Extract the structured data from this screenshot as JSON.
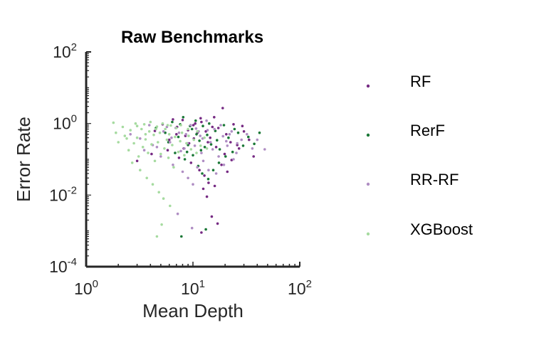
{
  "chart_data": {
    "type": "scatter",
    "title": "Raw Benchmarks",
    "xlabel": "Mean Depth",
    "ylabel": "Error Rate",
    "x_scale": "log",
    "y_scale": "log",
    "xlim": [
      1,
      100
    ],
    "ylim": [
      0.0001,
      100
    ],
    "x_ticks": [
      {
        "base": "10",
        "exp": "0",
        "value": 1
      },
      {
        "base": "10",
        "exp": "1",
        "value": 10
      },
      {
        "base": "10",
        "exp": "2",
        "value": 100
      }
    ],
    "y_ticks": [
      {
        "base": "10",
        "exp": "-4",
        "value": 0.0001
      },
      {
        "base": "10",
        "exp": "-2",
        "value": 0.01
      },
      {
        "base": "10",
        "exp": "0",
        "value": 1
      },
      {
        "base": "10",
        "exp": "2",
        "value": 100
      }
    ],
    "grid": false,
    "legend_position": "right",
    "series": [
      {
        "name": "RF",
        "color": "#762a83",
        "points": [
          [
            4.4,
            0.62
          ],
          [
            5.2,
            0.95
          ],
          [
            6.0,
            0.35
          ],
          [
            7.1,
            0.8
          ],
          [
            8.0,
            1.25
          ],
          [
            8.5,
            0.45
          ],
          [
            9.2,
            0.28
          ],
          [
            10.1,
            0.9
          ],
          [
            11.0,
            0.55
          ],
          [
            12.0,
            1.1
          ],
          [
            13.2,
            0.6
          ],
          [
            14.5,
            0.4
          ],
          [
            15.8,
            1.5
          ],
          [
            17.3,
            0.75
          ],
          [
            19.0,
            2.7
          ],
          [
            20.5,
            0.5
          ],
          [
            22.5,
            0.3
          ],
          [
            24.0,
            0.95
          ],
          [
            27.0,
            0.2
          ],
          [
            30.0,
            0.6
          ],
          [
            33.5,
            0.35
          ],
          [
            37.0,
            0.12
          ],
          [
            3.0,
            0.09
          ],
          [
            4.1,
            0.14
          ],
          [
            5.8,
            0.18
          ],
          [
            7.4,
            0.11
          ],
          [
            9.6,
            0.08
          ],
          [
            11.5,
            0.05
          ],
          [
            12.8,
            0.035
          ],
          [
            14.0,
            0.022
          ],
          [
            16.0,
            0.018
          ],
          [
            18.5,
            0.07
          ],
          [
            21.0,
            0.045
          ],
          [
            12.5,
            0.015
          ],
          [
            13.5,
            0.009
          ],
          [
            15.0,
            0.0025
          ],
          [
            17.0,
            0.0016
          ],
          [
            12.0,
            0.0009
          ],
          [
            26.0,
            0.25
          ],
          [
            29.0,
            0.85
          ],
          [
            6.5,
            1.3
          ],
          [
            10.5,
            1.0
          ],
          [
            9.0,
            0.65
          ],
          [
            13.8,
            0.3
          ],
          [
            16.5,
            0.22
          ],
          [
            8.2,
            0.2
          ],
          [
            7.0,
            0.5
          ],
          [
            11.8,
            1.4
          ],
          [
            15.2,
            0.8
          ],
          [
            19.8,
            0.14
          ],
          [
            23.0,
            0.095
          ],
          [
            10.2,
            0.38
          ]
        ]
      },
      {
        "name": "RerF",
        "color": "#1b7837",
        "points": [
          [
            4.5,
            0.75
          ],
          [
            5.5,
            0.55
          ],
          [
            6.4,
            1.1
          ],
          [
            7.3,
            0.42
          ],
          [
            8.1,
            1.5
          ],
          [
            9.0,
            0.25
          ],
          [
            9.8,
            0.7
          ],
          [
            10.6,
            1.2
          ],
          [
            11.5,
            0.33
          ],
          [
            12.4,
            0.85
          ],
          [
            13.6,
            0.48
          ],
          [
            14.8,
            0.26
          ],
          [
            16.2,
            0.62
          ],
          [
            17.8,
            0.19
          ],
          [
            19.5,
            0.9
          ],
          [
            21.5,
            0.4
          ],
          [
            23.5,
            0.16
          ],
          [
            26.5,
            0.55
          ],
          [
            29.5,
            0.24
          ],
          [
            33.0,
            0.42
          ],
          [
            37.5,
            0.27
          ],
          [
            42.0,
            0.55
          ],
          [
            6.8,
            0.15
          ],
          [
            8.4,
            0.1
          ],
          [
            10.0,
            0.13
          ],
          [
            11.2,
            0.065
          ],
          [
            12.2,
            0.04
          ],
          [
            13.9,
            0.028
          ],
          [
            15.5,
            0.05
          ],
          [
            17.5,
            0.08
          ],
          [
            7.8,
            0.0007
          ],
          [
            13.2,
            0.0011
          ],
          [
            8.8,
            0.16
          ],
          [
            10.8,
            0.5
          ],
          [
            12.9,
            0.22
          ],
          [
            14.2,
            1.0
          ],
          [
            9.4,
            0.85
          ],
          [
            16.8,
            0.34
          ],
          [
            20.2,
            0.12
          ],
          [
            24.5,
            0.7
          ],
          [
            5.9,
            0.3
          ],
          [
            7.6,
            0.95
          ],
          [
            11.9,
            0.18
          ]
        ]
      },
      {
        "name": "RR-RF",
        "color": "#af8dc3",
        "points": [
          [
            2.6,
            0.5
          ],
          [
            3.2,
            0.38
          ],
          [
            3.9,
            0.9
          ],
          [
            4.6,
            0.22
          ],
          [
            5.3,
            0.6
          ],
          [
            6.1,
            0.3
          ],
          [
            6.9,
            0.75
          ],
          [
            7.7,
            0.17
          ],
          [
            8.6,
            0.5
          ],
          [
            9.5,
            0.9
          ],
          [
            10.4,
            0.24
          ],
          [
            11.3,
            0.6
          ],
          [
            12.3,
            0.38
          ],
          [
            13.4,
            1.2
          ],
          [
            14.6,
            0.3
          ],
          [
            15.9,
            0.7
          ],
          [
            17.4,
            0.12
          ],
          [
            19.1,
            0.44
          ],
          [
            21.0,
            0.24
          ],
          [
            23.0,
            0.6
          ],
          [
            25.5,
            0.15
          ],
          [
            28.5,
            0.35
          ],
          [
            32.0,
            0.5
          ],
          [
            36.0,
            0.2
          ],
          [
            40.0,
            0.35
          ],
          [
            47.0,
            0.19
          ],
          [
            5.0,
            0.12
          ],
          [
            6.5,
            0.07
          ],
          [
            8.0,
            0.045
          ],
          [
            9.0,
            0.03
          ],
          [
            10.0,
            0.02
          ],
          [
            11.0,
            0.06
          ],
          [
            12.5,
            0.09
          ],
          [
            14.0,
            0.05
          ],
          [
            16.5,
            0.04
          ],
          [
            19.5,
            0.07
          ],
          [
            7.2,
            0.003
          ],
          [
            9.8,
            0.0012
          ],
          [
            4.2,
            0.25
          ],
          [
            5.7,
            0.8
          ],
          [
            7.4,
            0.55
          ],
          [
            8.9,
            0.28
          ],
          [
            10.7,
            0.72
          ],
          [
            12.0,
            0.15
          ],
          [
            13.7,
            0.65
          ],
          [
            18.2,
            0.9
          ],
          [
            22.0,
            0.5
          ],
          [
            26.0,
            0.28
          ],
          [
            3.5,
            0.18
          ],
          [
            6.3,
            0.4
          ],
          [
            8.3,
            0.2
          ],
          [
            15.3,
            0.19
          ],
          [
            11.7,
            0.45
          ],
          [
            20.5,
            0.32
          ],
          [
            24.0,
            0.1
          ]
        ]
      },
      {
        "name": "XGBoost",
        "color": "#a6dba0",
        "points": [
          [
            1.8,
            1.05
          ],
          [
            1.9,
            0.55
          ],
          [
            2.0,
            0.3
          ],
          [
            2.2,
            0.8
          ],
          [
            2.3,
            0.45
          ],
          [
            2.5,
            0.18
          ],
          [
            2.6,
            0.65
          ],
          [
            2.8,
            0.28
          ],
          [
            2.9,
            1.0
          ],
          [
            3.0,
            0.4
          ],
          [
            3.1,
            0.12
          ],
          [
            3.3,
            0.7
          ],
          [
            3.4,
            0.22
          ],
          [
            3.5,
            0.95
          ],
          [
            3.6,
            0.36
          ],
          [
            3.8,
            0.15
          ],
          [
            3.9,
            0.6
          ],
          [
            4.0,
            1.1
          ],
          [
            4.1,
            0.26
          ],
          [
            4.3,
            0.48
          ],
          [
            4.4,
            0.09
          ],
          [
            4.6,
            0.82
          ],
          [
            4.7,
            0.3
          ],
          [
            4.9,
            0.55
          ],
          [
            5.0,
            0.14
          ],
          [
            5.2,
            1.0
          ],
          [
            5.4,
            0.2
          ],
          [
            5.5,
            0.7
          ],
          [
            5.7,
            0.35
          ],
          [
            5.9,
            0.11
          ],
          [
            6.0,
            0.5
          ],
          [
            6.2,
            0.88
          ],
          [
            6.4,
            0.25
          ],
          [
            6.6,
            0.06
          ],
          [
            6.8,
            0.42
          ],
          [
            7.0,
            0.75
          ],
          [
            7.3,
            0.16
          ],
          [
            7.6,
            0.32
          ],
          [
            7.9,
            0.55
          ],
          [
            8.3,
            0.13
          ],
          [
            8.7,
            0.28
          ],
          [
            9.1,
            0.45
          ],
          [
            9.6,
            0.19
          ],
          [
            10.2,
            0.35
          ],
          [
            11.0,
            0.6
          ],
          [
            11.8,
            0.24
          ],
          [
            12.8,
            0.4
          ],
          [
            2.7,
            0.08
          ],
          [
            3.2,
            0.05
          ],
          [
            3.7,
            0.03
          ],
          [
            4.2,
            0.02
          ],
          [
            4.8,
            0.012
          ],
          [
            5.3,
            0.008
          ],
          [
            6.1,
            0.005
          ],
          [
            5.1,
            0.0015
          ],
          [
            4.6,
            0.0007
          ],
          [
            3.0,
            0.85
          ],
          [
            3.6,
            0.5
          ],
          [
            4.5,
            0.7
          ],
          [
            2.4,
            0.38
          ],
          [
            5.8,
            0.9
          ],
          [
            7.7,
            0.9
          ],
          [
            9.0,
            0.7
          ],
          [
            10.8,
            0.15
          ],
          [
            13.5,
            0.2
          ]
        ]
      }
    ]
  }
}
